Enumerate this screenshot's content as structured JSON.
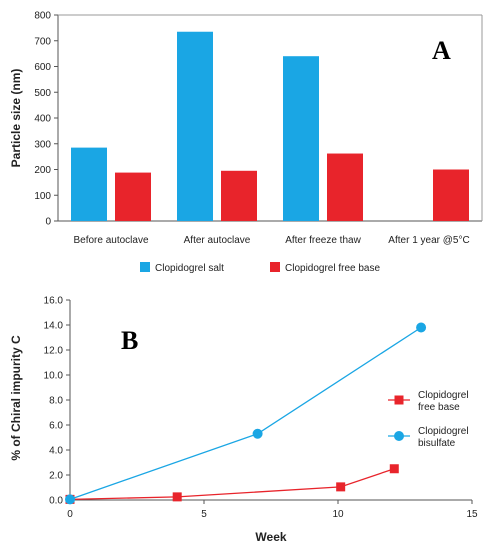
{
  "chart_data": [
    {
      "type": "bar",
      "panel_label": "A",
      "categories": [
        "Before autoclave",
        "After autoclave",
        "After freeze thaw",
        "After 1 year @5°C"
      ],
      "series": [
        {
          "name": "Clopidogrel salt",
          "values": [
            285,
            735,
            640,
            null
          ],
          "color": "#1aa6e4"
        },
        {
          "name": "Clopidogrel free base",
          "values": [
            188,
            195,
            262,
            200
          ],
          "color": "#e8242b"
        }
      ],
      "ylabel": "Particle size (nm)",
      "ylim": [
        0,
        800
      ],
      "yticks": [
        "0",
        "100",
        "200",
        "300",
        "400",
        "500",
        "600",
        "700",
        "800"
      ],
      "legend_position": "bottom"
    },
    {
      "type": "line",
      "panel_label": "B",
      "series": [
        {
          "name": "Clopidogrel free base",
          "name_lines": [
            "Clopidogrel",
            "free base"
          ],
          "color": "#e8242b",
          "marker": "square",
          "points": [
            [
              0,
              0.05
            ],
            [
              4,
              0.25
            ],
            [
              10.1,
              1.05
            ],
            [
              12.1,
              2.5
            ]
          ]
        },
        {
          "name": "Clopidogrel bisulfate",
          "name_lines": [
            "Clopidogrel",
            "bisulfate"
          ],
          "color": "#1aa6e4",
          "marker": "circle",
          "points": [
            [
              0,
              0.05
            ],
            [
              7,
              5.3
            ],
            [
              13.1,
              13.8
            ]
          ]
        }
      ],
      "xlabel": "Week",
      "ylabel": "% of Chiral impurity C",
      "xlim": [
        0,
        15
      ],
      "ylim": [
        0,
        16
      ],
      "xticks": [
        "0",
        "5",
        "10",
        "15"
      ],
      "yticks": [
        "0.0",
        "2.0",
        "4.0",
        "6.0",
        "8.0",
        "10.0",
        "12.0",
        "14.0",
        "16.0"
      ],
      "legend_position": "right"
    }
  ]
}
